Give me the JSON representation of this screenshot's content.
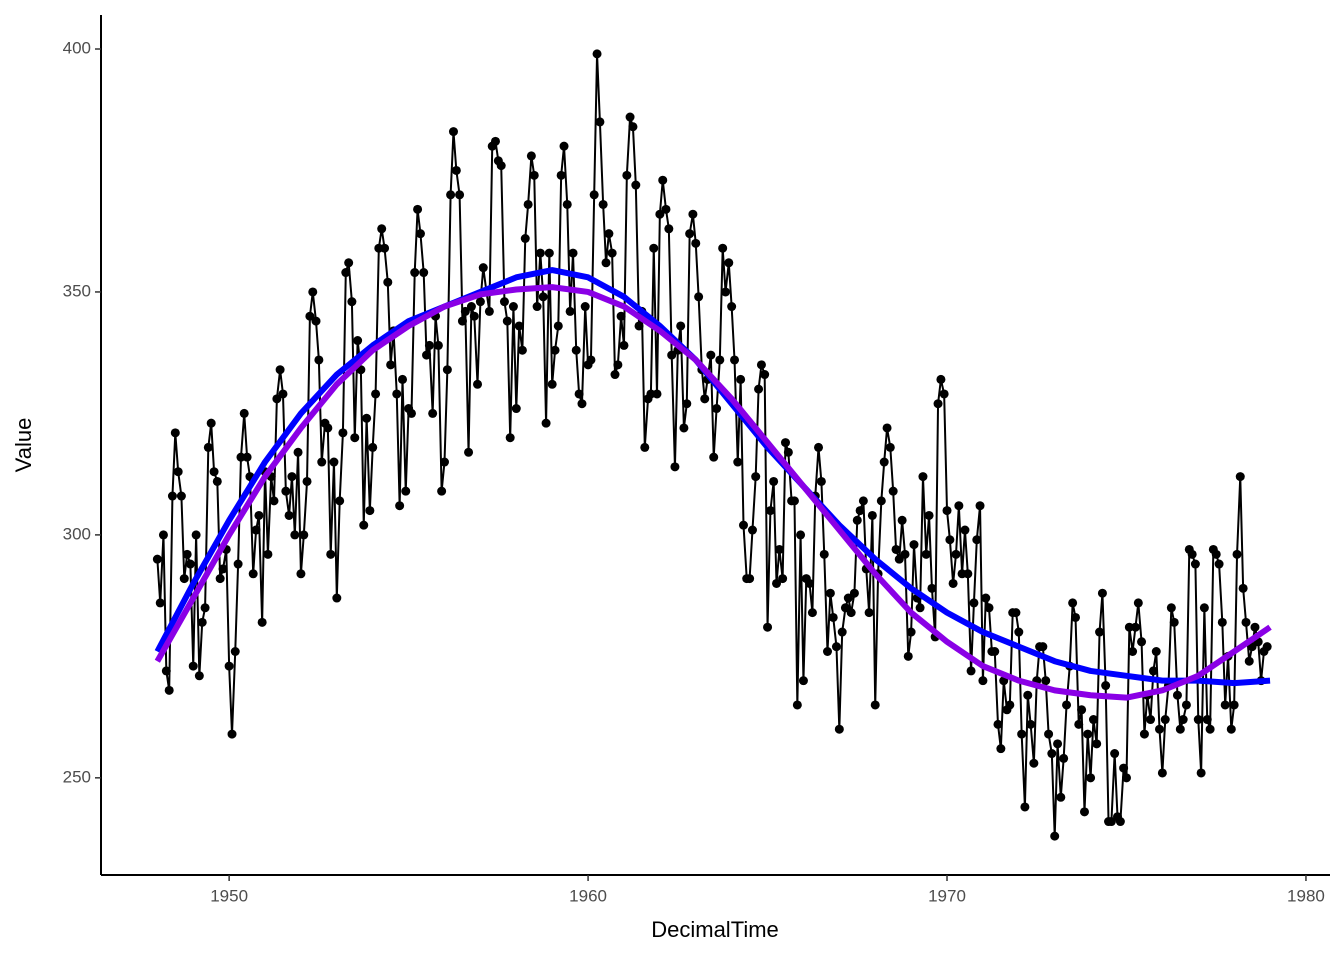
{
  "chart_data": {
    "type": "line",
    "x_label": "DecimalTime",
    "y_label": "Value",
    "xlim": [
      1946.43,
      1980.67
    ],
    "xticks": [
      1950,
      1960,
      1970,
      1980
    ],
    "ylim": [
      230,
      407
    ],
    "yticks": [
      250,
      300,
      350,
      400
    ],
    "x": [
      1948,
      1948.08,
      1948.17,
      1948.25,
      1948.33,
      1948.42,
      1948.5,
      1948.58,
      1948.67,
      1948.75,
      1948.83,
      1948.92,
      1949,
      1949.08,
      1949.17,
      1949.25,
      1949.33,
      1949.42,
      1949.5,
      1949.58,
      1949.67,
      1949.75,
      1949.83,
      1949.92,
      1950,
      1950.08,
      1950.17,
      1950.25,
      1950.33,
      1950.42,
      1950.5,
      1950.58,
      1950.67,
      1950.75,
      1950.83,
      1950.92,
      1951,
      1951.08,
      1951.17,
      1951.25,
      1951.33,
      1951.42,
      1951.5,
      1951.58,
      1951.67,
      1951.75,
      1951.83,
      1951.92,
      1952,
      1952.08,
      1952.17,
      1952.25,
      1952.33,
      1952.42,
      1952.5,
      1952.58,
      1952.67,
      1952.75,
      1952.83,
      1952.92,
      1953,
      1953.08,
      1953.17,
      1953.25,
      1953.33,
      1953.42,
      1953.5,
      1953.58,
      1953.67,
      1953.75,
      1953.83,
      1953.92,
      1954,
      1954.08,
      1954.17,
      1954.25,
      1954.33,
      1954.42,
      1954.5,
      1954.58,
      1954.67,
      1954.75,
      1954.83,
      1954.92,
      1955,
      1955.08,
      1955.17,
      1955.25,
      1955.33,
      1955.42,
      1955.5,
      1955.58,
      1955.67,
      1955.75,
      1955.83,
      1955.92,
      1956,
      1956.08,
      1956.17,
      1956.25,
      1956.33,
      1956.42,
      1956.5,
      1956.58,
      1956.67,
      1956.75,
      1956.83,
      1956.92,
      1957,
      1957.08,
      1957.17,
      1957.25,
      1957.33,
      1957.42,
      1957.5,
      1957.58,
      1957.67,
      1957.75,
      1957.83,
      1957.92,
      1958,
      1958.08,
      1958.17,
      1958.25,
      1958.33,
      1958.42,
      1958.5,
      1958.58,
      1958.67,
      1958.75,
      1958.83,
      1958.92,
      1959,
      1959.08,
      1959.17,
      1959.25,
      1959.33,
      1959.42,
      1959.5,
      1959.58,
      1959.67,
      1959.75,
      1959.83,
      1959.92,
      1960,
      1960.08,
      1960.17,
      1960.25,
      1960.33,
      1960.42,
      1960.5,
      1960.58,
      1960.67,
      1960.75,
      1960.83,
      1960.92,
      1961,
      1961.08,
      1961.17,
      1961.25,
      1961.33,
      1961.42,
      1961.5,
      1961.58,
      1961.67,
      1961.75,
      1961.83,
      1961.92,
      1962,
      1962.08,
      1962.17,
      1962.25,
      1962.33,
      1962.42,
      1962.5,
      1962.58,
      1962.67,
      1962.75,
      1962.83,
      1962.92,
      1963,
      1963.08,
      1963.17,
      1963.25,
      1963.33,
      1963.42,
      1963.5,
      1963.58,
      1963.67,
      1963.75,
      1963.83,
      1963.92,
      1964,
      1964.08,
      1964.17,
      1964.25,
      1964.33,
      1964.42,
      1964.5,
      1964.58,
      1964.67,
      1964.75,
      1964.83,
      1964.92,
      1965,
      1965.08,
      1965.17,
      1965.25,
      1965.33,
      1965.42,
      1965.5,
      1965.58,
      1965.67,
      1965.75,
      1965.83,
      1965.92,
      1966,
      1966.08,
      1966.17,
      1966.25,
      1966.33,
      1966.42,
      1966.5,
      1966.58,
      1966.67,
      1966.75,
      1966.83,
      1966.92,
      1967,
      1967.08,
      1967.17,
      1967.25,
      1967.33,
      1967.42,
      1967.5,
      1967.58,
      1967.67,
      1967.75,
      1967.83,
      1967.92,
      1968,
      1968.08,
      1968.17,
      1968.25,
      1968.33,
      1968.42,
      1968.5,
      1968.58,
      1968.67,
      1968.75,
      1968.83,
      1968.92,
      1969,
      1969.08,
      1969.17,
      1969.25,
      1969.33,
      1969.42,
      1969.5,
      1969.58,
      1969.67,
      1969.75,
      1969.83,
      1969.92,
      1970,
      1970.08,
      1970.17,
      1970.25,
      1970.33,
      1970.42,
      1970.5,
      1970.58,
      1970.67,
      1970.75,
      1970.83,
      1970.92,
      1971,
      1971.08,
      1971.17,
      1971.25,
      1971.33,
      1971.42,
      1971.5,
      1971.58,
      1971.67,
      1971.75,
      1971.83,
      1971.92,
      1972,
      1972.08,
      1972.17,
      1972.25,
      1972.33,
      1972.42,
      1972.5,
      1972.58,
      1972.67,
      1972.75,
      1972.83,
      1972.92,
      1973,
      1973.08,
      1973.17,
      1973.25,
      1973.33,
      1973.42,
      1973.5,
      1973.58,
      1973.67,
      1973.75,
      1973.83,
      1973.92,
      1974,
      1974.08,
      1974.17,
      1974.25,
      1974.33,
      1974.42,
      1974.5,
      1974.58,
      1974.67,
      1974.75,
      1974.83,
      1974.92,
      1975,
      1975.08,
      1975.17,
      1975.25,
      1975.33,
      1975.42,
      1975.5,
      1975.58,
      1975.67,
      1975.75,
      1975.83,
      1975.92,
      1976,
      1976.08,
      1976.17,
      1976.25,
      1976.33,
      1976.42,
      1976.5,
      1976.58,
      1976.67,
      1976.75,
      1976.83,
      1976.92,
      1977,
      1977.08,
      1977.17,
      1977.25,
      1977.33,
      1977.42,
      1977.5,
      1977.58,
      1977.67,
      1977.75,
      1977.83,
      1977.92,
      1978,
      1978.08,
      1978.17,
      1978.25,
      1978.33,
      1978.42,
      1978.5,
      1978.58,
      1978.67,
      1978.75,
      1978.83,
      1978.92
    ],
    "series": [
      {
        "color": "#000000",
        "markers": true,
        "values": [
          295,
          286,
          300,
          272,
          268,
          308,
          321,
          313,
          308,
          291,
          296,
          294,
          273,
          300,
          271,
          282,
          285,
          318,
          323,
          313,
          311,
          291,
          293,
          297,
          273,
          259,
          276,
          294,
          316,
          325,
          316,
          312,
          292,
          301,
          304,
          282,
          313,
          296,
          312,
          307,
          328,
          334,
          329,
          309,
          304,
          312,
          300,
          317,
          292,
          300,
          311,
          345,
          350,
          344,
          336,
          315,
          323,
          322,
          296,
          315,
          287,
          307,
          321,
          354,
          356,
          348,
          320,
          340,
          334,
          302,
          324,
          305,
          318,
          329,
          359,
          363,
          359,
          352,
          335,
          342,
          329,
          306,
          332,
          309,
          326,
          325,
          354,
          367,
          362,
          354,
          337,
          339,
          325,
          345,
          339,
          309,
          315,
          334,
          370,
          383,
          375,
          370,
          344,
          346,
          317,
          347,
          345,
          331,
          348,
          355,
          350,
          346,
          380,
          381,
          377,
          376,
          348,
          344,
          320,
          347,
          326,
          343,
          338,
          361,
          368,
          378,
          374,
          347,
          358,
          349,
          323,
          358,
          331,
          338,
          343,
          374,
          380,
          368,
          346,
          358,
          338,
          329,
          327,
          347,
          335,
          336,
          370,
          399,
          385,
          368,
          356,
          362,
          358,
          333,
          335,
          345,
          339,
          374,
          386,
          384,
          372,
          343,
          346,
          318,
          328,
          329,
          359,
          329,
          366,
          373,
          367,
          363,
          337,
          314,
          338,
          343,
          322,
          327,
          362,
          366,
          360,
          349,
          334,
          328,
          332,
          337,
          316,
          326,
          336,
          359,
          350,
          356,
          347,
          336,
          315,
          332,
          302,
          291,
          291,
          301,
          312,
          330,
          335,
          333,
          281,
          305,
          311,
          290,
          297,
          291,
          319,
          317,
          307,
          307,
          265,
          300,
          270,
          291,
          290,
          284,
          308,
          318,
          311,
          296,
          276,
          288,
          283,
          277,
          260,
          280,
          285,
          287,
          284,
          288,
          303,
          305,
          307,
          293,
          284,
          304,
          265,
          292,
          307,
          315,
          322,
          318,
          309,
          297,
          295,
          303,
          296,
          275,
          280,
          298,
          287,
          285,
          312,
          296,
          304,
          289,
          279,
          327,
          332,
          329,
          305,
          299,
          290,
          296,
          306,
          292,
          301,
          292,
          272,
          286,
          299,
          306,
          270,
          287,
          285,
          276,
          276,
          261,
          256,
          270,
          264,
          265,
          284,
          284,
          280,
          259,
          244,
          267,
          261,
          253,
          270,
          277,
          277,
          270,
          259,
          255,
          238,
          257,
          246,
          254,
          265,
          273,
          286,
          283,
          261,
          264,
          243,
          259,
          250,
          262,
          257,
          280,
          288,
          269,
          241,
          241,
          255,
          242,
          241,
          252,
          250,
          281,
          276,
          281,
          286,
          278,
          259,
          267,
          262,
          272,
          276,
          260,
          251,
          262,
          269,
          285,
          282,
          267,
          260,
          262,
          265,
          297,
          296,
          294,
          262,
          251,
          285,
          262,
          260,
          297,
          296,
          294,
          282,
          265,
          275,
          260,
          265,
          296,
          312,
          289,
          282,
          274,
          277,
          281,
          278,
          270,
          276,
          277
        ]
      },
      {
        "color": "#0000ff",
        "x": [
          1948,
          1949,
          1950,
          1951,
          1952,
          1953,
          1954,
          1955,
          1956,
          1957,
          1958,
          1959,
          1960,
          1961,
          1962,
          1963,
          1964,
          1965,
          1966,
          1967,
          1968,
          1969,
          1970,
          1971,
          1972,
          1973,
          1974,
          1975,
          1976,
          1977,
          1978,
          1979
        ],
        "values": [
          276,
          290,
          303,
          315,
          325,
          333,
          339,
          344,
          347,
          350,
          353,
          354.5,
          353,
          349,
          343,
          336,
          327,
          318,
          310,
          302,
          295,
          289,
          284,
          280,
          277,
          274,
          272,
          271,
          270,
          270,
          269.5,
          270
        ]
      },
      {
        "color": "#8a00e6",
        "x": [
          1948,
          1949,
          1950,
          1951,
          1952,
          1953,
          1954,
          1955,
          1956,
          1957,
          1958,
          1959,
          1960,
          1961,
          1962,
          1963,
          1964,
          1965,
          1966,
          1967,
          1968,
          1969,
          1970,
          1971,
          1972,
          1973,
          1974,
          1975,
          1976,
          1977,
          1978,
          1979
        ],
        "values": [
          274,
          287,
          300,
          312,
          322,
          331,
          338,
          343,
          347,
          349.5,
          350.5,
          351,
          350,
          347,
          342,
          336,
          328,
          319,
          310,
          301,
          292,
          284,
          278,
          273,
          270,
          268,
          267,
          266.5,
          268,
          271,
          276,
          281
        ]
      }
    ]
  }
}
